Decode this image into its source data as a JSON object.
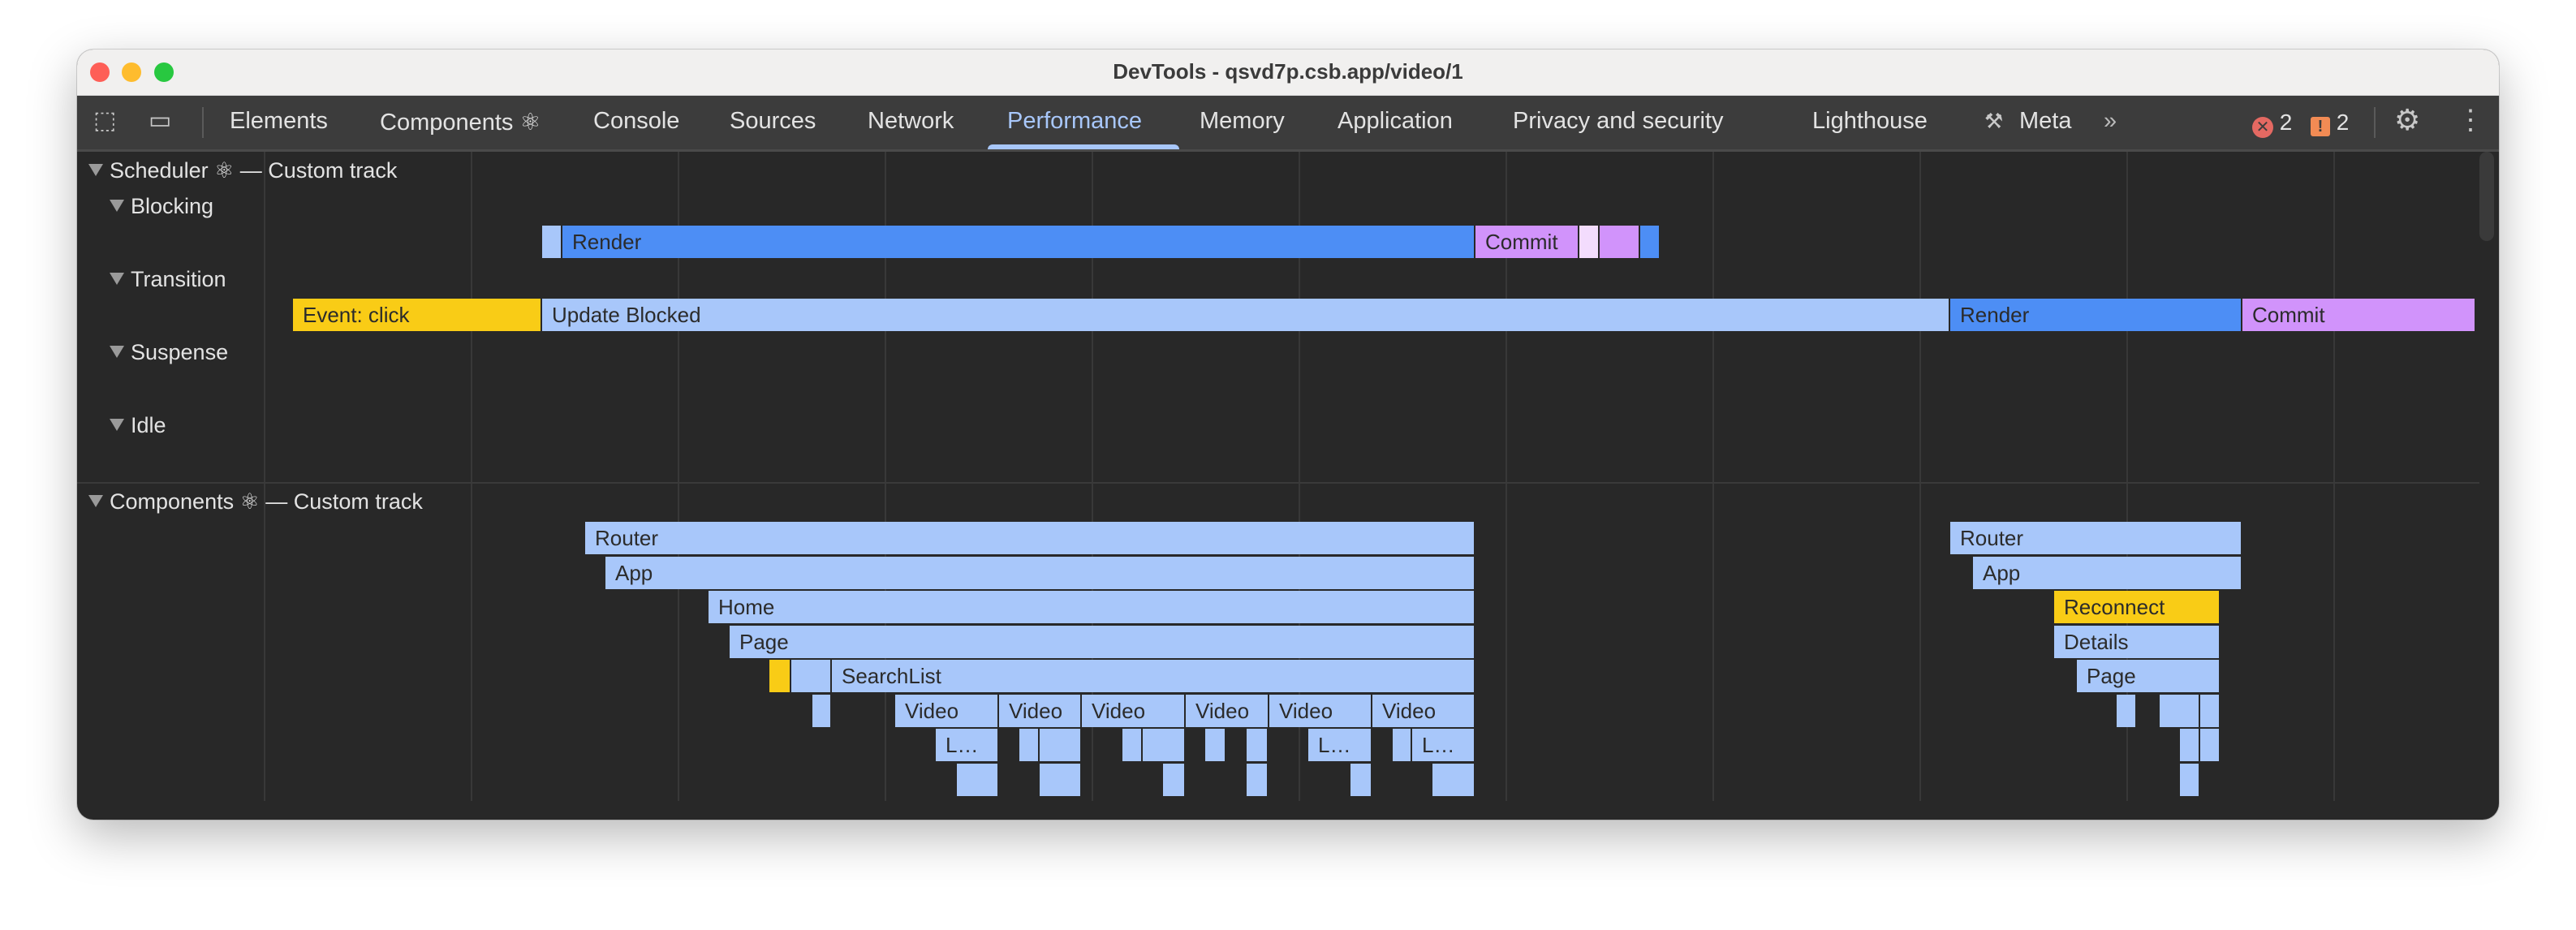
{
  "window": {
    "title": "DevTools - qsvd7p.csb.app/video/1"
  },
  "toolbar": {
    "tabs": [
      {
        "label": "Elements"
      },
      {
        "label": "Components ⚛"
      },
      {
        "label": "Console"
      },
      {
        "label": "Sources"
      },
      {
        "label": "Network"
      },
      {
        "label": "Performance",
        "active": true
      },
      {
        "label": "Memory"
      },
      {
        "label": "Application"
      },
      {
        "label": "Privacy and security"
      },
      {
        "label": "Lighthouse"
      },
      {
        "label": "Meta",
        "icon": "tools-icon"
      }
    ],
    "more_tabs": "»",
    "error_count": "2",
    "warning_count": "2",
    "colors": {
      "accent": "#a8c7fa",
      "error": "#e46962",
      "warning": "#f28b54"
    }
  },
  "tracks": {
    "scheduler": {
      "title": "Scheduler ⚛ — Custom track",
      "lanes": {
        "blocking": "Blocking",
        "transition": "Transition",
        "suspense": "Suspense",
        "idle": "Idle"
      },
      "bars": {
        "render": "Render",
        "commit": "Commit",
        "event_click": "Event: click",
        "update_blocked": "Update Blocked",
        "render2": "Render",
        "commit2": "Commit"
      }
    },
    "components": {
      "title": "Components ⚛ — Custom track",
      "bars": {
        "router": "Router",
        "app": "App",
        "home": "Home",
        "page": "Page",
        "searchlist": "SearchList",
        "video": "Video",
        "truncated": "L…",
        "reconnect": "Reconnect",
        "details": "Details"
      }
    }
  },
  "colors": {
    "render": "#4d8ef5",
    "light": "#a8c7fa",
    "commit": "#d193fb",
    "commit_light": "#f3dcfd",
    "event": "#f9cc16"
  }
}
